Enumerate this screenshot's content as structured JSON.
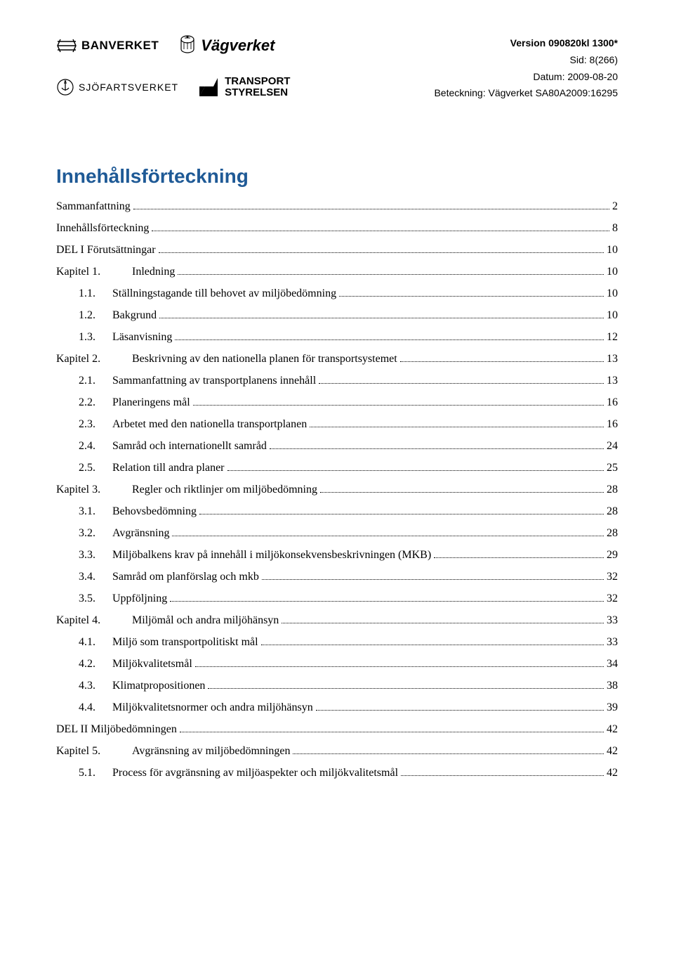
{
  "meta": {
    "version": "Version 090820kl 1300*",
    "sid_label": "Sid:",
    "sid_value": "8(266)",
    "datum_label": "Datum:",
    "datum_value": "2009-08-20",
    "beteckning_label": "Beteckning:",
    "beteckning_value": "Vägverket SA80A2009:16295"
  },
  "logos": {
    "banverket": "BANVERKET",
    "vagverket": "Vägverket",
    "sjofart": "SJÖFARTSVERKET",
    "transport_l1": "TRANSPORT",
    "transport_l2": "STYRELSEN"
  },
  "title": "Innehållsförteckning",
  "toc": [
    {
      "indent": 1,
      "num": "",
      "wide": false,
      "label": "Sammanfattning",
      "page": "2"
    },
    {
      "indent": 1,
      "num": "",
      "wide": false,
      "label": "Innehållsförteckning",
      "page": "8"
    },
    {
      "indent": 1,
      "num": "",
      "wide": false,
      "label": "DEL I Förutsättningar",
      "page": "10"
    },
    {
      "indent": 1,
      "num": "Kapitel 1.",
      "wide": true,
      "label": "Inledning",
      "page": "10"
    },
    {
      "indent": 2,
      "num": "1.1.",
      "wide": false,
      "label": "Ställningstagande till behovet av miljöbedömning",
      "page": "10"
    },
    {
      "indent": 2,
      "num": "1.2.",
      "wide": false,
      "label": "Bakgrund",
      "page": "10"
    },
    {
      "indent": 2,
      "num": "1.3.",
      "wide": false,
      "label": "Läsanvisning",
      "page": "12"
    },
    {
      "indent": 1,
      "num": "Kapitel 2.",
      "wide": true,
      "label": "Beskrivning av den nationella planen för transportsystemet",
      "page": "13"
    },
    {
      "indent": 2,
      "num": "2.1.",
      "wide": false,
      "label": "Sammanfattning av transportplanens innehåll",
      "page": "13"
    },
    {
      "indent": 2,
      "num": "2.2.",
      "wide": false,
      "label": "Planeringens mål",
      "page": "16"
    },
    {
      "indent": 2,
      "num": "2.3.",
      "wide": false,
      "label": "Arbetet med den nationella transportplanen",
      "page": "16"
    },
    {
      "indent": 2,
      "num": "2.4.",
      "wide": false,
      "label": "Samråd och internationellt samråd",
      "page": "24"
    },
    {
      "indent": 2,
      "num": "2.5.",
      "wide": false,
      "label": "Relation till andra planer",
      "page": "25"
    },
    {
      "indent": 1,
      "num": "Kapitel 3.",
      "wide": true,
      "label": "Regler och riktlinjer om miljöbedömning",
      "page": "28"
    },
    {
      "indent": 2,
      "num": "3.1.",
      "wide": false,
      "label": "Behovsbedömning",
      "page": "28"
    },
    {
      "indent": 2,
      "num": "3.2.",
      "wide": false,
      "label": "Avgränsning",
      "page": "28"
    },
    {
      "indent": 2,
      "num": "3.3.",
      "wide": false,
      "label": "Miljöbalkens krav på innehåll i miljökonsekvensbeskrivningen (MKB)",
      "page": "29"
    },
    {
      "indent": 2,
      "num": "3.4.",
      "wide": false,
      "label": "Samråd om planförslag och mkb",
      "page": "32"
    },
    {
      "indent": 2,
      "num": "3.5.",
      "wide": false,
      "label": "Uppföljning",
      "page": "32"
    },
    {
      "indent": 1,
      "num": "Kapitel 4.",
      "wide": true,
      "label": "Miljömål och andra miljöhänsyn",
      "page": "33"
    },
    {
      "indent": 2,
      "num": "4.1.",
      "wide": false,
      "label": "Miljö som transportpolitiskt mål",
      "page": "33"
    },
    {
      "indent": 2,
      "num": "4.2.",
      "wide": false,
      "label": "Miljökvalitetsmål",
      "page": "34"
    },
    {
      "indent": 2,
      "num": "4.3.",
      "wide": false,
      "label": "Klimatpropositionen",
      "page": "38"
    },
    {
      "indent": 2,
      "num": "4.4.",
      "wide": false,
      "label": "Miljökvalitetsnormer och andra miljöhänsyn",
      "page": "39"
    },
    {
      "indent": 1,
      "num": "",
      "wide": false,
      "label": "DEL II Miljöbedömningen",
      "page": "42"
    },
    {
      "indent": 1,
      "num": "Kapitel 5.",
      "wide": true,
      "label": "Avgränsning av miljöbedömningen",
      "page": "42"
    },
    {
      "indent": 2,
      "num": "5.1.",
      "wide": false,
      "label": "Process för avgränsning av miljöaspekter och miljökvalitetsmål",
      "page": "42"
    }
  ],
  "colors": {
    "title": "#1f5a96",
    "text": "#000000",
    "background": "#ffffff"
  }
}
